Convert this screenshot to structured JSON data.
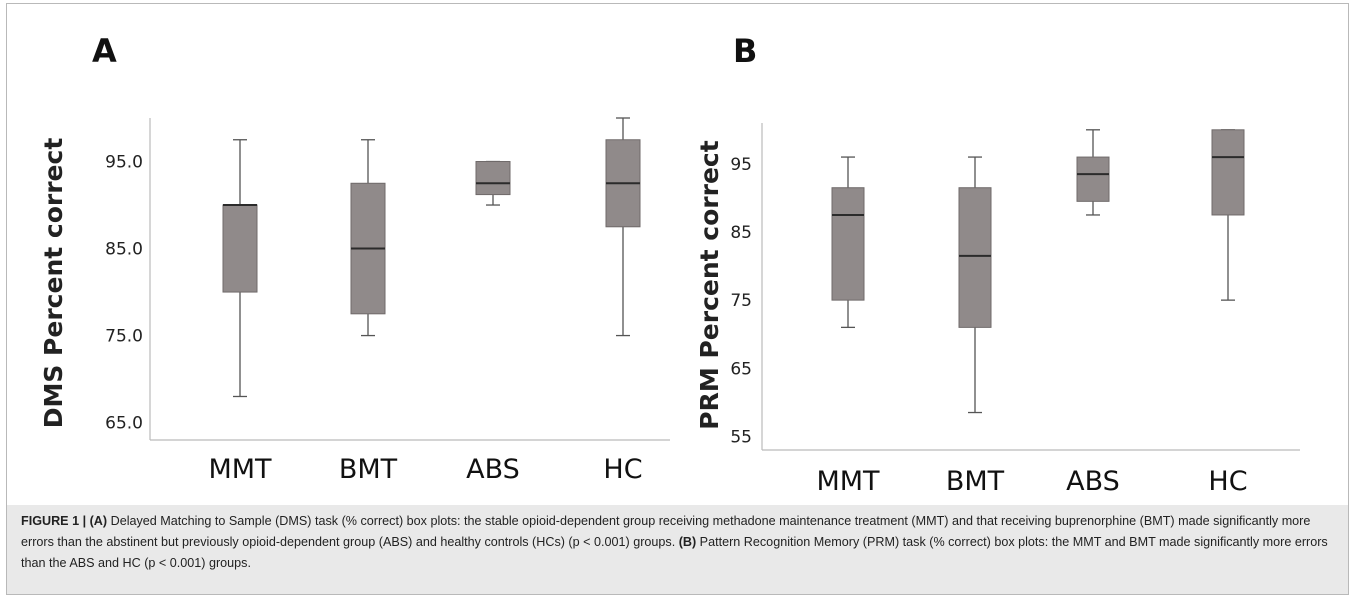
{
  "chart_data": [
    {
      "type": "box",
      "panel_label": "A",
      "ylabel": "DMS Percent correct",
      "ylim": [
        63,
        100
      ],
      "yticks": [
        65,
        75,
        85,
        95
      ],
      "ytick_labels": [
        "65.0",
        "75.0",
        "85.0",
        "95.0"
      ],
      "categories": [
        "MMT",
        "BMT",
        "ABS",
        "HC"
      ],
      "boxes": [
        {
          "min": 68,
          "q1": 80,
          "median": 90,
          "q3": 90,
          "max": 97.5
        },
        {
          "min": 75,
          "q1": 77.5,
          "median": 85,
          "q3": 92.5,
          "max": 97.5
        },
        {
          "min": 90,
          "q1": 91.2,
          "median": 92.5,
          "q3": 95,
          "max": 95
        },
        {
          "min": 75,
          "q1": 87.5,
          "median": 92.5,
          "q3": 97.5,
          "max": 100
        }
      ],
      "box_color": "#908a8a",
      "grid": false
    },
    {
      "type": "box",
      "panel_label": "B",
      "ylabel": "PRM Percent correct",
      "ylim": [
        53,
        101
      ],
      "yticks": [
        55,
        65,
        75,
        85,
        95
      ],
      "ytick_labels": [
        "55",
        "65",
        "75",
        "85",
        "95"
      ],
      "categories": [
        "MMT",
        "BMT",
        "ABS",
        "HC"
      ],
      "boxes": [
        {
          "min": 71,
          "q1": 75,
          "median": 87.5,
          "q3": 91.5,
          "max": 96
        },
        {
          "min": 58.5,
          "q1": 71,
          "median": 81.5,
          "q3": 91.5,
          "max": 96
        },
        {
          "min": 87.5,
          "q1": 89.5,
          "median": 93.5,
          "q3": 96,
          "max": 100
        },
        {
          "min": 75,
          "q1": 87.5,
          "median": 96,
          "q3": 100,
          "max": 100
        }
      ],
      "box_color": "#908a8a",
      "grid": false
    }
  ],
  "caption": {
    "label": "FIGURE 1 |",
    "a_tag": "(A)",
    "a_text": " Delayed Matching to Sample (DMS) task (% correct) box plots: the stable opioid-dependent group receiving methadone maintenance treatment (MMT) and that receiving buprenorphine (BMT) made significantly more errors than the abstinent but previously opioid-dependent group (ABS) and healthy controls (HCs) (p < 0.001) groups. ",
    "b_tag": "(B)",
    "b_text": " Pattern Recognition Memory (PRM) task (% correct) box plots: the MMT and BMT made significantly more errors than the ABS and HC (p < 0.001) groups."
  }
}
